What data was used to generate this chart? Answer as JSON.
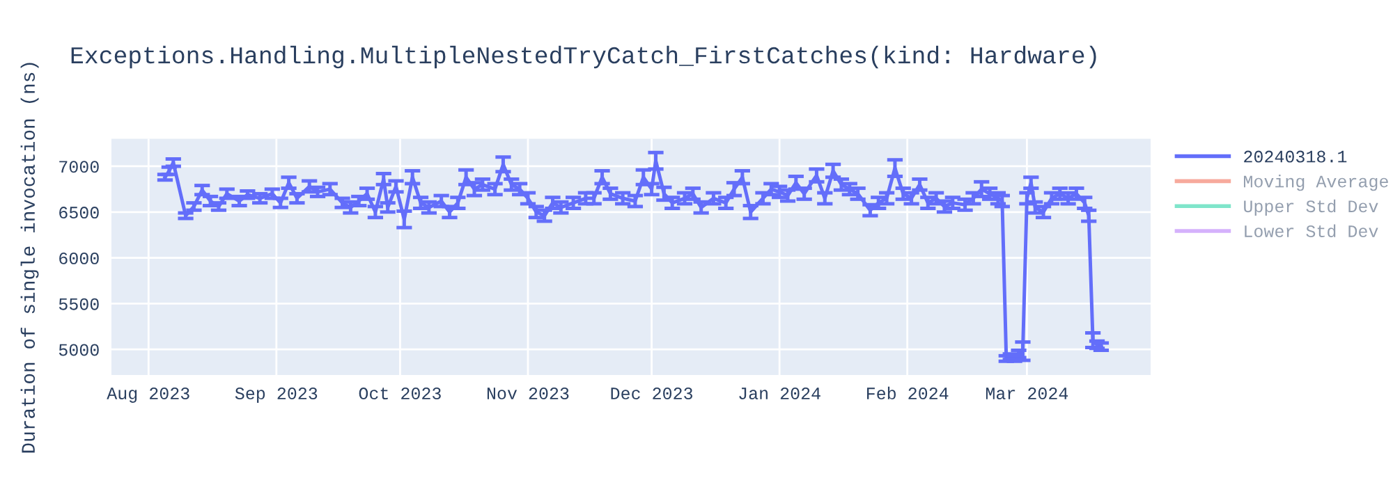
{
  "chart_data": {
    "type": "line",
    "title": "Exceptions.Handling.MultipleNestedTryCatch_FirstCatches(kind: Hardware)",
    "ylabel": "Duration of single invocation (ns)",
    "xlim": [
      "2023-07-23",
      "2024-03-31"
    ],
    "ylim": [
      4720,
      7300
    ],
    "xticks": [
      {
        "value": "2023-08-01",
        "label": "Aug 2023"
      },
      {
        "value": "2023-09-01",
        "label": "Sep 2023"
      },
      {
        "value": "2023-10-01",
        "label": "Oct 2023"
      },
      {
        "value": "2023-11-01",
        "label": "Nov 2023"
      },
      {
        "value": "2023-12-01",
        "label": "Dec 2023"
      },
      {
        "value": "2024-01-01",
        "label": "Jan 2024"
      },
      {
        "value": "2024-02-01",
        "label": "Feb 2024"
      },
      {
        "value": "2024-03-01",
        "label": "Mar 2024"
      }
    ],
    "yticks": [
      5000,
      5500,
      6000,
      6500,
      7000
    ],
    "grid": true,
    "legend": "right",
    "marker": "none",
    "line_style": "solid",
    "series": [
      {
        "name": "20240318.1",
        "color": "#636efa",
        "x": [
          "2023-08-05",
          "2023-08-06",
          "2023-08-07",
          "2023-08-10",
          "2023-08-12",
          "2023-08-14",
          "2023-08-16",
          "2023-08-18",
          "2023-08-20",
          "2023-08-23",
          "2023-08-25",
          "2023-08-28",
          "2023-08-31",
          "2023-09-02",
          "2023-09-04",
          "2023-09-06",
          "2023-09-09",
          "2023-09-11",
          "2023-09-14",
          "2023-09-17",
          "2023-09-19",
          "2023-09-21",
          "2023-09-23",
          "2023-09-25",
          "2023-09-27",
          "2023-09-28",
          "2023-09-30",
          "2023-10-02",
          "2023-10-04",
          "2023-10-06",
          "2023-10-08",
          "2023-10-11",
          "2023-10-13",
          "2023-10-15",
          "2023-10-17",
          "2023-10-19",
          "2023-10-21",
          "2023-10-24",
          "2023-10-26",
          "2023-10-28",
          "2023-10-30",
          "2023-11-01",
          "2023-11-03",
          "2023-11-05",
          "2023-11-07",
          "2023-11-09",
          "2023-11-12",
          "2023-11-15",
          "2023-11-17",
          "2023-11-19",
          "2023-11-21",
          "2023-11-24",
          "2023-11-27",
          "2023-11-29",
          "2023-12-01",
          "2023-12-02",
          "2023-12-04",
          "2023-12-06",
          "2023-12-09",
          "2023-12-11",
          "2023-12-13",
          "2023-12-16",
          "2023-12-19",
          "2023-12-21",
          "2023-12-23",
          "2023-12-25",
          "2023-12-28",
          "2023-12-30",
          "2024-01-01",
          "2024-01-03",
          "2024-01-05",
          "2024-01-07",
          "2024-01-10",
          "2024-01-12",
          "2024-01-14",
          "2024-01-16",
          "2024-01-18",
          "2024-01-20",
          "2024-01-23",
          "2024-01-25",
          "2024-01-27",
          "2024-01-29",
          "2024-01-31",
          "2024-02-02",
          "2024-02-04",
          "2024-02-06",
          "2024-02-08",
          "2024-02-10",
          "2024-02-12",
          "2024-02-15",
          "2024-02-17",
          "2024-02-19",
          "2024-02-21",
          "2024-02-23",
          "2024-02-24",
          "2024-02-25",
          "2024-02-26",
          "2024-02-27",
          "2024-02-28",
          "2024-02-29",
          "2024-03-01",
          "2024-03-02",
          "2024-03-03",
          "2024-03-05",
          "2024-03-07",
          "2024-03-09",
          "2024-03-11",
          "2024-03-13",
          "2024-03-15",
          "2024-03-16",
          "2024-03-17",
          "2024-03-18",
          "2024-03-19"
        ],
        "values": [
          6880,
          6950,
          7040,
          6460,
          6560,
          6740,
          6620,
          6560,
          6700,
          6620,
          6690,
          6650,
          6700,
          6600,
          6820,
          6650,
          6780,
          6720,
          6750,
          6600,
          6550,
          6620,
          6700,
          6500,
          6860,
          6550,
          6780,
          6420,
          6880,
          6600,
          6550,
          6620,
          6500,
          6600,
          6880,
          6750,
          6800,
          6750,
          7020,
          6800,
          6750,
          6650,
          6500,
          6460,
          6600,
          6550,
          6600,
          6650,
          6650,
          6880,
          6700,
          6650,
          6620,
          6880,
          6750,
          7060,
          6700,
          6600,
          6650,
          6700,
          6550,
          6650,
          6600,
          6750,
          6880,
          6500,
          6650,
          6750,
          6720,
          6680,
          6820,
          6700,
          6900,
          6650,
          6950,
          6800,
          6750,
          6700,
          6520,
          6600,
          6650,
          6980,
          6700,
          6650,
          6800,
          6600,
          6650,
          6560,
          6600,
          6580,
          6650,
          6750,
          6700,
          6650,
          6620,
          4900,
          4920,
          4900,
          4950,
          4980,
          6650,
          6820,
          6550,
          6500,
          6650,
          6700,
          6650,
          6700,
          6600,
          6460,
          5100,
          5050,
          5030
        ],
        "errors": [
          30,
          40,
          40,
          30,
          40,
          50,
          50,
          40,
          50,
          50,
          40,
          50,
          50,
          50,
          60,
          50,
          60,
          50,
          60,
          50,
          60,
          50,
          60,
          60,
          60,
          50,
          60,
          90,
          70,
          60,
          60,
          60,
          60,
          60,
          80,
          70,
          60,
          60,
          80,
          60,
          60,
          60,
          60,
          60,
          60,
          60,
          60,
          60,
          60,
          70,
          60,
          60,
          60,
          80,
          60,
          90,
          70,
          60,
          60,
          60,
          60,
          60,
          60,
          70,
          70,
          70,
          60,
          60,
          60,
          60,
          70,
          60,
          70,
          60,
          70,
          60,
          60,
          60,
          60,
          60,
          60,
          90,
          60,
          60,
          60,
          60,
          60,
          60,
          60,
          60,
          60,
          80,
          60,
          60,
          60,
          30,
          30,
          30,
          40,
          100,
          60,
          60,
          60,
          60,
          60,
          60,
          60,
          60,
          60,
          60,
          80,
          40,
          40
        ]
      },
      {
        "name": "Moving Average",
        "color": "#ef553b"
      },
      {
        "name": "Upper Std Dev",
        "color": "#00cc96"
      },
      {
        "name": "Lower Std Dev",
        "color": "#ab63fa"
      }
    ]
  }
}
